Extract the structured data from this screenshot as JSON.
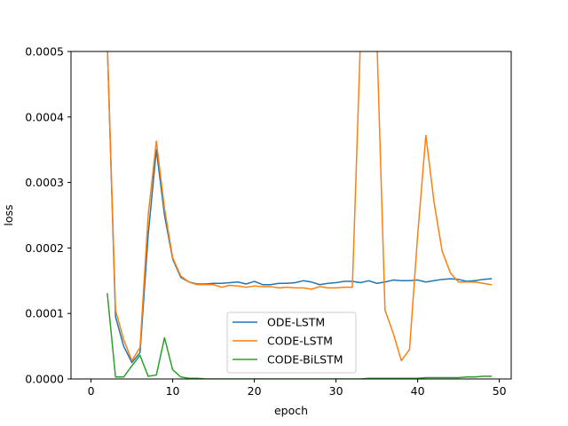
{
  "chart_data": {
    "type": "line",
    "xlabel": "epoch",
    "ylabel": "loss",
    "xlim": [
      -2.45,
      51.45
    ],
    "ylim": [
      0,
      0.0005
    ],
    "xticks": [
      0,
      10,
      20,
      30,
      40,
      50
    ],
    "xtick_labels": [
      "0",
      "10",
      "20",
      "30",
      "40",
      "50"
    ],
    "yticks": [
      0,
      0.0001,
      0.0002,
      0.0003,
      0.0004,
      0.0005
    ],
    "ytick_labels": [
      "0.0000",
      "0.0001",
      "0.0002",
      "0.0003",
      "0.0004",
      "0.0005"
    ],
    "grid": false,
    "legend": {
      "placement": "lower-center"
    },
    "series": [
      {
        "name": "ODE-LSTM",
        "color": "#1f77b4",
        "x": [
          2,
          3,
          4,
          5,
          6,
          7,
          8,
          9,
          10,
          11,
          12,
          13,
          14,
          15,
          16,
          17,
          18,
          19,
          20,
          21,
          22,
          23,
          24,
          25,
          26,
          27,
          28,
          29,
          30,
          31,
          32,
          33,
          34,
          35,
          36,
          37,
          38,
          39,
          40,
          41,
          42,
          43,
          44,
          45,
          46,
          47,
          48,
          49
        ],
        "y": [
          0.00051,
          9.5e-05,
          5e-05,
          2.5e-05,
          4e-05,
          0.00022,
          0.00035,
          0.00025,
          0.000183,
          0.000155,
          0.000148,
          0.000145,
          0.000145,
          0.000146,
          0.000146,
          0.000147,
          0.000148,
          0.000145,
          0.000149,
          0.000144,
          0.000144,
          0.000146,
          0.000146,
          0.000147,
          0.00015,
          0.000148,
          0.000144,
          0.000146,
          0.000147,
          0.000149,
          0.000149,
          0.000147,
          0.00015,
          0.000146,
          0.000148,
          0.000151,
          0.00015,
          0.00015,
          0.000151,
          0.000148,
          0.00015,
          0.000152,
          0.000153,
          0.000152,
          0.000149,
          0.00015,
          0.000152,
          0.000153
        ]
      },
      {
        "name": "CODE-LSTM",
        "color": "#ff7f0e",
        "x": [
          2,
          3,
          4,
          5,
          6,
          7,
          8,
          9,
          10,
          11,
          12,
          13,
          14,
          15,
          16,
          17,
          18,
          19,
          20,
          21,
          22,
          23,
          24,
          25,
          26,
          27,
          28,
          29,
          30,
          31,
          32,
          33,
          34,
          35,
          36,
          37,
          38,
          39,
          40,
          41,
          42,
          43,
          44,
          45,
          46,
          47,
          48,
          49
        ],
        "y": [
          0.00051,
          0.000105,
          6e-05,
          2.8e-05,
          4.8e-05,
          0.00025,
          0.000363,
          0.00026,
          0.000185,
          0.000157,
          0.000148,
          0.000144,
          0.000144,
          0.000144,
          0.00014,
          0.000143,
          0.000142,
          0.00014,
          0.000142,
          0.000141,
          0.000141,
          0.000139,
          0.00014,
          0.000139,
          0.000139,
          0.000137,
          0.000141,
          0.000139,
          0.000139,
          0.00014,
          0.00014,
          0.00052,
          0.00052,
          0.00052,
          0.000105,
          7e-05,
          2.8e-05,
          4.5e-05,
          0.00022,
          0.000372,
          0.00027,
          0.000195,
          0.000162,
          0.000148,
          0.000148,
          0.000148,
          0.000146,
          0.000144
        ]
      },
      {
        "name": "CODE-BiLSTM",
        "color": "#2ca02c",
        "x": [
          2,
          3,
          4,
          5,
          6,
          7,
          8,
          9,
          10,
          11,
          12,
          13,
          14,
          15,
          16,
          17,
          18,
          19,
          20,
          21,
          22,
          23,
          24,
          25,
          26,
          27,
          28,
          29,
          30,
          31,
          32,
          33,
          34,
          35,
          36,
          37,
          38,
          39,
          40,
          41,
          42,
          43,
          44,
          45,
          46,
          47,
          48,
          49
        ],
        "y": [
          0.00013,
          3e-06,
          3e-06,
          2e-05,
          3.6e-05,
          4e-06,
          6e-06,
          6.3e-05,
          1.4e-05,
          3e-06,
          1e-06,
          1e-06,
          0,
          0,
          0,
          0,
          0,
          0,
          0,
          0,
          0,
          0,
          0,
          0,
          0,
          0,
          0,
          0,
          0,
          0,
          0,
          0,
          1e-06,
          1e-06,
          1e-06,
          1e-06,
          1e-06,
          1e-06,
          1e-06,
          2e-06,
          2e-06,
          2e-06,
          2e-06,
          2e-06,
          3e-06,
          3e-06,
          4e-06,
          4e-06
        ]
      }
    ]
  }
}
